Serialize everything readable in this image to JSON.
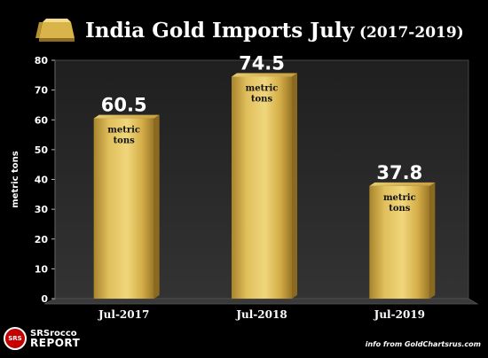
{
  "chart_data": {
    "type": "bar",
    "title": "India Gold Imports July",
    "subtitle": "(2017-2019)",
    "categories": [
      "Jul-2017",
      "Jul-2018",
      "Jul-2019"
    ],
    "values": [
      60.5,
      74.5,
      37.8
    ],
    "data_labels": [
      "60.5",
      "74.5",
      "37.8"
    ],
    "unit_label": "metric tons",
    "xlabel": "",
    "ylabel": "metric tons",
    "ylim": [
      0,
      80
    ],
    "yticks": [
      0,
      10,
      20,
      30,
      40,
      50,
      60,
      70,
      80
    ],
    "grid": false,
    "legend": "none",
    "colors": {
      "bar": "#d9b44a",
      "floor": "#3a3a3a",
      "wall": "#2a2a2a"
    }
  },
  "branding": {
    "logo_line1": "SRSrocco",
    "logo_line2": "REPORT",
    "logo_mark": "SRS",
    "source": "info from GoldChartsrus.com"
  }
}
